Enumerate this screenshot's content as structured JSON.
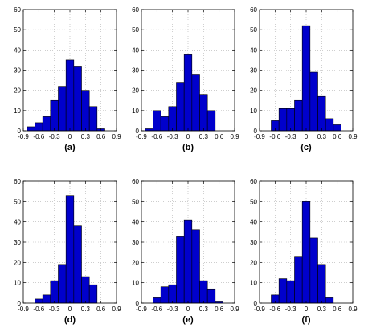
{
  "chart_data": [
    {
      "type": "bar",
      "subtitle": "(a)",
      "bin_centers": [
        -0.75,
        -0.6,
        -0.45,
        -0.3,
        -0.15,
        0.0,
        0.15,
        0.3,
        0.45,
        0.6
      ],
      "values": [
        2,
        4,
        7,
        15,
        22,
        35,
        32,
        20,
        12,
        1
      ],
      "xticks": [
        "-0.9",
        "-0.6",
        "-0.3",
        "0",
        "0.3",
        "0.6",
        "0.9"
      ],
      "yticks": [
        "0",
        "10",
        "20",
        "30",
        "40",
        "50",
        "60"
      ],
      "xlim": [
        -0.9,
        0.9
      ],
      "ylim": [
        0,
        60
      ],
      "grid": true,
      "bar_color": "#0000cc"
    },
    {
      "type": "bar",
      "subtitle": "(b)",
      "bin_centers": [
        -0.75,
        -0.6,
        -0.45,
        -0.3,
        -0.15,
        0.0,
        0.15,
        0.3,
        0.45
      ],
      "values": [
        1,
        10,
        7,
        12,
        24,
        38,
        28,
        18,
        10
      ],
      "xticks": [
        "-0.9",
        "-0.6",
        "-0.3",
        "0",
        "0.3",
        "0.6",
        "0.9"
      ],
      "yticks": [
        "0",
        "10",
        "20",
        "30",
        "40",
        "50",
        "60"
      ],
      "xlim": [
        -0.9,
        0.9
      ],
      "ylim": [
        0,
        60
      ],
      "grid": true,
      "bar_color": "#0000cc"
    },
    {
      "type": "bar",
      "subtitle": "(c)",
      "bin_centers": [
        -0.6,
        -0.45,
        -0.3,
        -0.15,
        0.0,
        0.15,
        0.3,
        0.45,
        0.6
      ],
      "values": [
        5,
        11,
        11,
        15,
        52,
        29,
        17,
        6,
        3
      ],
      "xticks": [
        "-0.9",
        "-0.6",
        "-0.3",
        "0",
        "0.3",
        "0.6",
        "0.9"
      ],
      "yticks": [
        "0",
        "10",
        "20",
        "30",
        "40",
        "50",
        "60"
      ],
      "xlim": [
        -0.9,
        0.9
      ],
      "ylim": [
        0,
        60
      ],
      "grid": true,
      "bar_color": "#0000cc"
    },
    {
      "type": "bar",
      "subtitle": "(d)",
      "bin_centers": [
        -0.6,
        -0.45,
        -0.3,
        -0.15,
        0.0,
        0.15,
        0.3,
        0.45
      ],
      "values": [
        2,
        4,
        11,
        19,
        53,
        38,
        13,
        9
      ],
      "xticks": [
        "-0.9",
        "-0.6",
        "-0.3",
        "0",
        "0.3",
        "0.6",
        "0.9"
      ],
      "yticks": [
        "0",
        "10",
        "20",
        "30",
        "40",
        "50",
        "60"
      ],
      "xlim": [
        -0.9,
        0.9
      ],
      "ylim": [
        0,
        60
      ],
      "grid": true,
      "bar_color": "#0000cc"
    },
    {
      "type": "bar",
      "subtitle": "(e)",
      "bin_centers": [
        -0.6,
        -0.45,
        -0.3,
        -0.15,
        0.0,
        0.15,
        0.3,
        0.45,
        0.6
      ],
      "values": [
        3,
        8,
        9,
        33,
        41,
        36,
        11,
        7,
        1
      ],
      "xticks": [
        "-0.9",
        "-0.6",
        "-0.3",
        "0",
        "0.3",
        "0.6",
        "0.9"
      ],
      "yticks": [
        "0",
        "10",
        "20",
        "30",
        "40",
        "50",
        "60"
      ],
      "xlim": [
        -0.9,
        0.9
      ],
      "ylim": [
        0,
        60
      ],
      "grid": true,
      "bar_color": "#0000cc"
    },
    {
      "type": "bar",
      "subtitle": "(f)",
      "bin_centers": [
        -0.6,
        -0.45,
        -0.3,
        -0.15,
        0.0,
        0.15,
        0.3,
        0.45
      ],
      "values": [
        4,
        12,
        11,
        23,
        50,
        32,
        19,
        3
      ],
      "xticks": [
        "-0.9",
        "-0.6",
        "-0.3",
        "0",
        "0.3",
        "0.6",
        "0.9"
      ],
      "yticks": [
        "0",
        "10",
        "20",
        "30",
        "40",
        "50",
        "60"
      ],
      "xlim": [
        -0.9,
        0.9
      ],
      "ylim": [
        0,
        60
      ],
      "grid": true,
      "bar_color": "#0000cc"
    }
  ]
}
